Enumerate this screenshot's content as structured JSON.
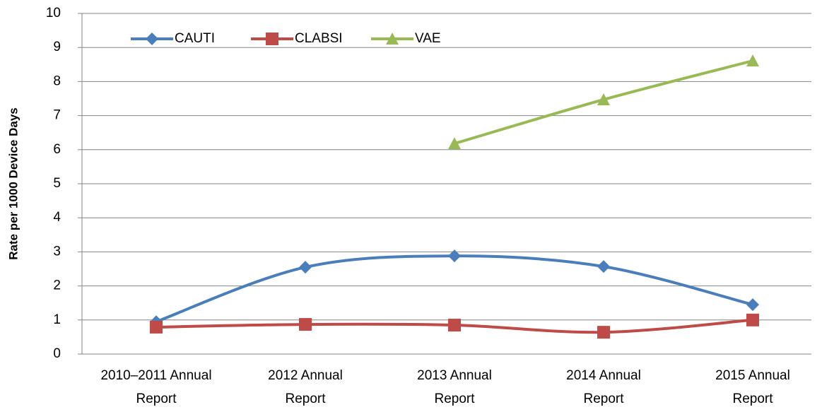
{
  "chart_data": {
    "type": "line",
    "y_label": "Rate per 1000 Device Days",
    "categories": [
      "2010–2011 Annual Report",
      "2012 Annual Report",
      "2013 Annual Report",
      "2014 Annual Report",
      "2015 Annual Report"
    ],
    "series": [
      {
        "name": "CAUTI",
        "color": "#4a7ebb",
        "marker": "diamond",
        "values": [
          0.95,
          2.55,
          2.88,
          2.57,
          1.45
        ]
      },
      {
        "name": "CLABSI",
        "color": "#be4b48",
        "marker": "square",
        "values": [
          0.79,
          0.87,
          0.85,
          0.64,
          1.0
        ]
      },
      {
        "name": "VAE",
        "color": "#98b954",
        "marker": "triangle",
        "values": [
          null,
          null,
          6.18,
          7.47,
          8.61
        ]
      }
    ],
    "ylim": [
      0,
      10
    ],
    "yticks": [
      0,
      1,
      2,
      3,
      4,
      5,
      6,
      7,
      8,
      9,
      10
    ],
    "grid": true,
    "legend": "top-left"
  }
}
